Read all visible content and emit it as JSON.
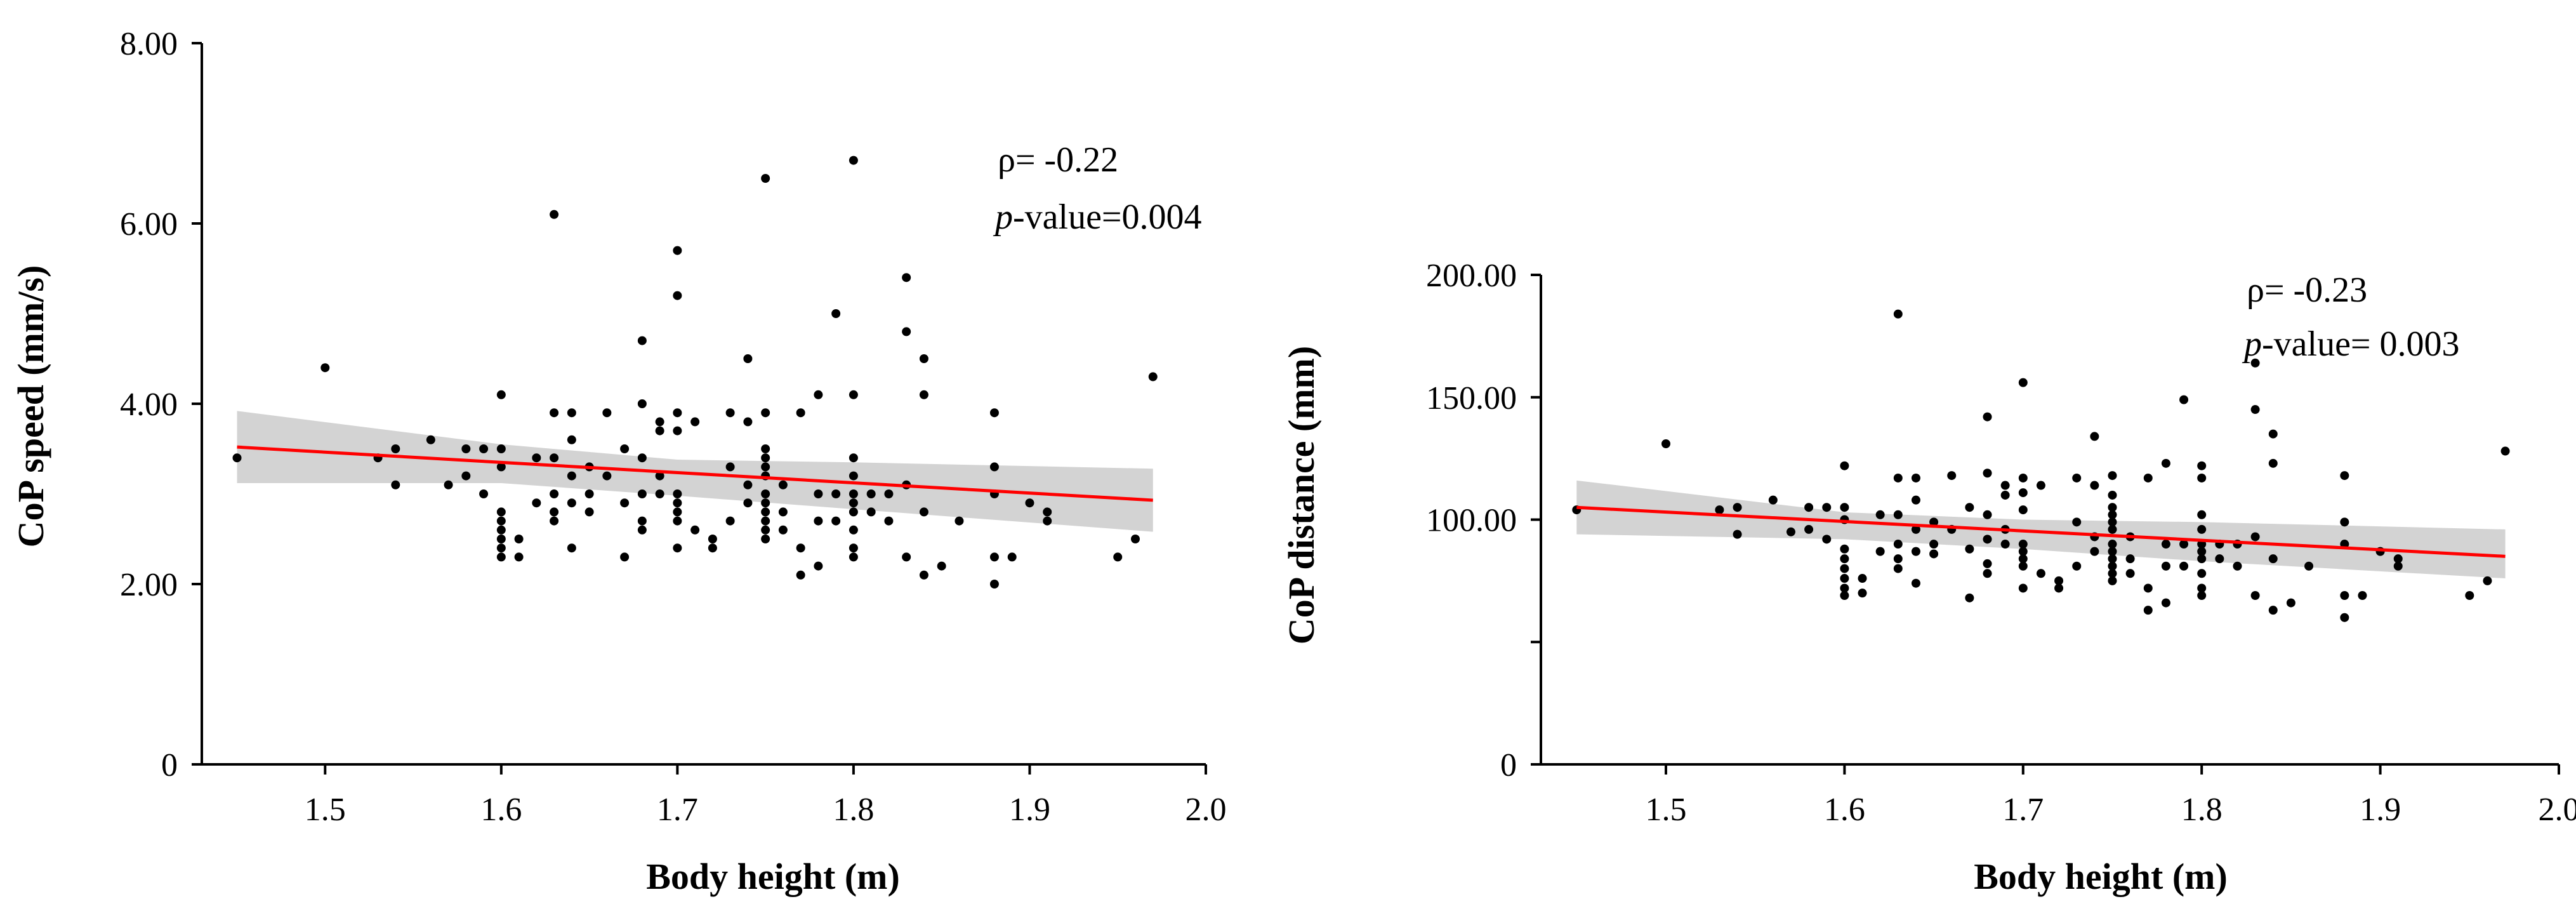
{
  "chart_data": [
    {
      "type": "scatter",
      "xlabel": "Body height (m)",
      "ylabel": "CoP speed (mm/s)",
      "xlim": [
        1.43,
        2.0
      ],
      "ylim": [
        0,
        8
      ],
      "x_ticks": [
        1.5,
        1.6,
        1.7,
        1.8,
        1.9,
        2.0
      ],
      "x_tick_labels": [
        "1.5",
        "1.6",
        "1.7",
        "1.8",
        "1.9",
        "2.0"
      ],
      "y_ticks": [
        0,
        2,
        4,
        6,
        8
      ],
      "y_tick_labels": [
        "0",
        "2.00",
        "4.00",
        "6.00",
        "8.00"
      ],
      "annotation": {
        "rho": "ρ= -0.22",
        "p_italic": "p",
        "p_rest": "-value=0.004"
      },
      "colors": {
        "points": "#000000",
        "fit_line": "#ff0000",
        "confidence_band": "#d3d3d3"
      },
      "fit_line": {
        "x": [
          1.45,
          1.97
        ],
        "y": [
          3.52,
          2.93
        ]
      },
      "confidence_band": {
        "x": [
          1.45,
          1.6,
          1.7,
          1.8,
          1.97
        ],
        "lower": [
          3.12,
          3.12,
          2.98,
          2.83,
          2.58
        ],
        "upper": [
          3.92,
          3.55,
          3.38,
          3.35,
          3.28
        ]
      },
      "points": [
        [
          1.45,
          3.4
        ],
        [
          1.5,
          4.4
        ],
        [
          1.53,
          3.4
        ],
        [
          1.54,
          3.5
        ],
        [
          1.54,
          3.1
        ],
        [
          1.56,
          3.6
        ],
        [
          1.57,
          3.1
        ],
        [
          1.58,
          3.5
        ],
        [
          1.58,
          3.2
        ],
        [
          1.59,
          3.5
        ],
        [
          1.59,
          3.0
        ],
        [
          1.6,
          4.1
        ],
        [
          1.6,
          3.5
        ],
        [
          1.6,
          3.3
        ],
        [
          1.6,
          2.8
        ],
        [
          1.6,
          2.7
        ],
        [
          1.6,
          2.6
        ],
        [
          1.6,
          2.5
        ],
        [
          1.6,
          2.4
        ],
        [
          1.6,
          2.3
        ],
        [
          1.61,
          2.5
        ],
        [
          1.61,
          2.3
        ],
        [
          1.62,
          3.4
        ],
        [
          1.62,
          2.9
        ],
        [
          1.63,
          6.1
        ],
        [
          1.63,
          3.9
        ],
        [
          1.63,
          3.4
        ],
        [
          1.63,
          3.0
        ],
        [
          1.63,
          2.8
        ],
        [
          1.63,
          2.7
        ],
        [
          1.64,
          3.9
        ],
        [
          1.64,
          3.6
        ],
        [
          1.64,
          3.2
        ],
        [
          1.64,
          2.9
        ],
        [
          1.64,
          2.4
        ],
        [
          1.65,
          3.3
        ],
        [
          1.65,
          3.0
        ],
        [
          1.65,
          2.8
        ],
        [
          1.66,
          3.9
        ],
        [
          1.66,
          3.2
        ],
        [
          1.67,
          3.5
        ],
        [
          1.67,
          2.9
        ],
        [
          1.67,
          2.3
        ],
        [
          1.68,
          4.7
        ],
        [
          1.68,
          4.0
        ],
        [
          1.68,
          3.4
        ],
        [
          1.68,
          3.0
        ],
        [
          1.68,
          2.7
        ],
        [
          1.68,
          2.6
        ],
        [
          1.69,
          3.8
        ],
        [
          1.69,
          3.7
        ],
        [
          1.69,
          3.2
        ],
        [
          1.69,
          3.0
        ],
        [
          1.7,
          5.7
        ],
        [
          1.7,
          5.2
        ],
        [
          1.7,
          3.9
        ],
        [
          1.7,
          3.7
        ],
        [
          1.7,
          3.0
        ],
        [
          1.7,
          2.9
        ],
        [
          1.7,
          2.8
        ],
        [
          1.7,
          2.7
        ],
        [
          1.7,
          2.4
        ],
        [
          1.71,
          3.8
        ],
        [
          1.71,
          2.6
        ],
        [
          1.72,
          2.5
        ],
        [
          1.72,
          2.4
        ],
        [
          1.73,
          3.9
        ],
        [
          1.73,
          3.3
        ],
        [
          1.73,
          2.7
        ],
        [
          1.74,
          4.5
        ],
        [
          1.74,
          3.8
        ],
        [
          1.74,
          3.1
        ],
        [
          1.74,
          2.9
        ],
        [
          1.75,
          6.5
        ],
        [
          1.75,
          3.9
        ],
        [
          1.75,
          3.5
        ],
        [
          1.75,
          3.4
        ],
        [
          1.75,
          3.3
        ],
        [
          1.75,
          3.2
        ],
        [
          1.75,
          3.0
        ],
        [
          1.75,
          2.9
        ],
        [
          1.75,
          2.8
        ],
        [
          1.75,
          2.7
        ],
        [
          1.75,
          2.6
        ],
        [
          1.75,
          2.5
        ],
        [
          1.76,
          3.1
        ],
        [
          1.76,
          2.8
        ],
        [
          1.76,
          2.6
        ],
        [
          1.77,
          3.9
        ],
        [
          1.77,
          2.4
        ],
        [
          1.77,
          2.1
        ],
        [
          1.78,
          4.1
        ],
        [
          1.78,
          3.0
        ],
        [
          1.78,
          2.7
        ],
        [
          1.78,
          2.2
        ],
        [
          1.79,
          5.0
        ],
        [
          1.79,
          3.0
        ],
        [
          1.79,
          2.7
        ],
        [
          1.8,
          6.7
        ],
        [
          1.8,
          4.1
        ],
        [
          1.8,
          3.4
        ],
        [
          1.8,
          3.2
        ],
        [
          1.8,
          3.0
        ],
        [
          1.8,
          2.9
        ],
        [
          1.8,
          2.8
        ],
        [
          1.8,
          2.6
        ],
        [
          1.8,
          2.4
        ],
        [
          1.8,
          2.3
        ],
        [
          1.81,
          3.0
        ],
        [
          1.81,
          2.8
        ],
        [
          1.82,
          3.0
        ],
        [
          1.82,
          2.7
        ],
        [
          1.83,
          5.4
        ],
        [
          1.83,
          4.8
        ],
        [
          1.83,
          3.1
        ],
        [
          1.83,
          2.3
        ],
        [
          1.84,
          4.5
        ],
        [
          1.84,
          4.1
        ],
        [
          1.84,
          2.8
        ],
        [
          1.84,
          2.1
        ],
        [
          1.85,
          2.2
        ],
        [
          1.86,
          2.7
        ],
        [
          1.88,
          3.9
        ],
        [
          1.88,
          3.3
        ],
        [
          1.88,
          3.0
        ],
        [
          1.88,
          2.3
        ],
        [
          1.88,
          2.0
        ],
        [
          1.89,
          2.3
        ],
        [
          1.9,
          2.9
        ],
        [
          1.91,
          2.8
        ],
        [
          1.91,
          2.7
        ],
        [
          1.95,
          2.3
        ],
        [
          1.96,
          2.5
        ],
        [
          1.97,
          4.3
        ]
      ]
    },
    {
      "type": "scatter",
      "xlabel": "Body height (m)",
      "ylabel": "CoP distance (mm)",
      "xlim": [
        1.43,
        2.0
      ],
      "ylim": [
        0,
        200
      ],
      "x_ticks": [
        1.5,
        1.6,
        1.7,
        1.8,
        1.9,
        2.0
      ],
      "x_tick_labels": [
        "1.5",
        "1.6",
        "1.7",
        "1.8",
        "1.9",
        "2.0"
      ],
      "y_ticks": [
        0,
        50,
        100,
        150,
        200
      ],
      "y_tick_labels": [
        "0",
        "",
        "100.00",
        "150.00",
        "200.00"
      ],
      "annotation": {
        "rho": "ρ= -0.23",
        "p_italic": "p",
        "p_rest": "-value= 0.003"
      },
      "colors": {
        "points": "#000000",
        "fit_line": "#ff0000",
        "confidence_band": "#d3d3d3"
      },
      "fit_line": {
        "x": [
          1.45,
          1.97
        ],
        "y": [
          105,
          85
        ]
      },
      "confidence_band": {
        "x": [
          1.45,
          1.6,
          1.7,
          1.8,
          1.97
        ],
        "lower": [
          94,
          92,
          88,
          83,
          76
        ],
        "upper": [
          116,
          103,
          100,
          99,
          96
        ]
      },
      "points": [
        [
          1.45,
          104
        ],
        [
          1.5,
          131
        ],
        [
          1.53,
          104
        ],
        [
          1.54,
          105
        ],
        [
          1.54,
          94
        ],
        [
          1.56,
          108
        ],
        [
          1.57,
          95
        ],
        [
          1.58,
          105
        ],
        [
          1.58,
          96
        ],
        [
          1.59,
          105
        ],
        [
          1.59,
          92
        ],
        [
          1.6,
          122
        ],
        [
          1.6,
          105
        ],
        [
          1.6,
          100
        ],
        [
          1.6,
          88
        ],
        [
          1.6,
          84
        ],
        [
          1.6,
          80
        ],
        [
          1.6,
          76
        ],
        [
          1.6,
          72
        ],
        [
          1.6,
          69
        ],
        [
          1.61,
          76
        ],
        [
          1.61,
          70
        ],
        [
          1.62,
          102
        ],
        [
          1.62,
          87
        ],
        [
          1.63,
          184
        ],
        [
          1.63,
          117
        ],
        [
          1.63,
          102
        ],
        [
          1.63,
          90
        ],
        [
          1.63,
          84
        ],
        [
          1.63,
          80
        ],
        [
          1.64,
          117
        ],
        [
          1.64,
          108
        ],
        [
          1.64,
          96
        ],
        [
          1.64,
          87
        ],
        [
          1.64,
          74
        ],
        [
          1.65,
          99
        ],
        [
          1.65,
          90
        ],
        [
          1.65,
          86
        ],
        [
          1.66,
          118
        ],
        [
          1.66,
          96
        ],
        [
          1.67,
          105
        ],
        [
          1.67,
          88
        ],
        [
          1.67,
          68
        ],
        [
          1.68,
          142
        ],
        [
          1.68,
          119
        ],
        [
          1.68,
          102
        ],
        [
          1.68,
          92
        ],
        [
          1.68,
          82
        ],
        [
          1.68,
          78
        ],
        [
          1.69,
          114
        ],
        [
          1.69,
          110
        ],
        [
          1.69,
          96
        ],
        [
          1.69,
          90
        ],
        [
          1.7,
          156
        ],
        [
          1.7,
          117
        ],
        [
          1.7,
          111
        ],
        [
          1.7,
          104
        ],
        [
          1.7,
          90
        ],
        [
          1.7,
          87
        ],
        [
          1.7,
          84
        ],
        [
          1.7,
          81
        ],
        [
          1.7,
          72
        ],
        [
          1.71,
          114
        ],
        [
          1.71,
          78
        ],
        [
          1.72,
          75
        ],
        [
          1.72,
          72
        ],
        [
          1.73,
          117
        ],
        [
          1.73,
          99
        ],
        [
          1.73,
          81
        ],
        [
          1.74,
          134
        ],
        [
          1.74,
          114
        ],
        [
          1.74,
          93
        ],
        [
          1.74,
          87
        ],
        [
          1.75,
          118
        ],
        [
          1.75,
          110
        ],
        [
          1.75,
          105
        ],
        [
          1.75,
          102
        ],
        [
          1.75,
          99
        ],
        [
          1.75,
          96
        ],
        [
          1.75,
          90
        ],
        [
          1.75,
          87
        ],
        [
          1.75,
          84
        ],
        [
          1.75,
          81
        ],
        [
          1.75,
          78
        ],
        [
          1.75,
          75
        ],
        [
          1.76,
          93
        ],
        [
          1.76,
          84
        ],
        [
          1.76,
          78
        ],
        [
          1.77,
          117
        ],
        [
          1.77,
          72
        ],
        [
          1.77,
          63
        ],
        [
          1.78,
          123
        ],
        [
          1.78,
          90
        ],
        [
          1.78,
          81
        ],
        [
          1.78,
          66
        ],
        [
          1.79,
          149
        ],
        [
          1.79,
          90
        ],
        [
          1.79,
          81
        ],
        [
          1.8,
          122
        ],
        [
          1.8,
          117
        ],
        [
          1.8,
          102
        ],
        [
          1.8,
          96
        ],
        [
          1.8,
          90
        ],
        [
          1.8,
          87
        ],
        [
          1.8,
          84
        ],
        [
          1.8,
          78
        ],
        [
          1.8,
          72
        ],
        [
          1.8,
          69
        ],
        [
          1.81,
          90
        ],
        [
          1.81,
          84
        ],
        [
          1.82,
          90
        ],
        [
          1.82,
          81
        ],
        [
          1.83,
          164
        ],
        [
          1.83,
          145
        ],
        [
          1.83,
          93
        ],
        [
          1.83,
          69
        ],
        [
          1.84,
          135
        ],
        [
          1.84,
          123
        ],
        [
          1.84,
          84
        ],
        [
          1.84,
          63
        ],
        [
          1.85,
          66
        ],
        [
          1.86,
          81
        ],
        [
          1.88,
          118
        ],
        [
          1.88,
          99
        ],
        [
          1.88,
          90
        ],
        [
          1.88,
          69
        ],
        [
          1.88,
          60
        ],
        [
          1.89,
          69
        ],
        [
          1.9,
          87
        ],
        [
          1.91,
          84
        ],
        [
          1.91,
          81
        ],
        [
          1.95,
          69
        ],
        [
          1.96,
          75
        ],
        [
          1.97,
          128
        ]
      ]
    }
  ]
}
